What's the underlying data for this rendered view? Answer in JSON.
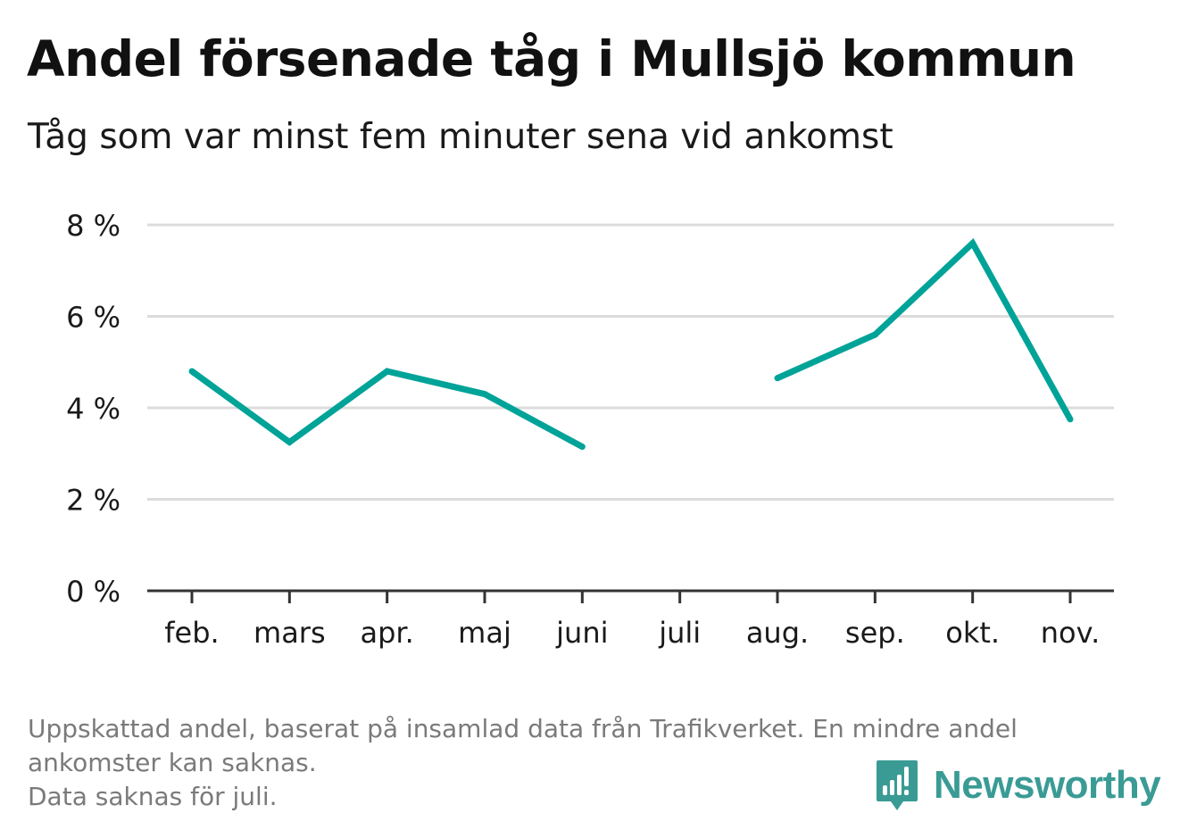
{
  "header": {
    "title": "Andel försenade tåg i Mullsjö kommun",
    "subtitle": "Tåg som var minst fem minuter sena vid ankomst"
  },
  "chart_data": {
    "type": "line",
    "title": "Andel försenade tåg i Mullsjö kommun",
    "subtitle": "Tåg som var minst fem minuter sena vid ankomst",
    "xlabel": "",
    "ylabel": "",
    "categories": [
      "feb.",
      "mars",
      "apr.",
      "maj",
      "juni",
      "juli",
      "aug.",
      "sep.",
      "okt.",
      "nov."
    ],
    "series": [
      {
        "values": [
          4.8,
          3.25,
          4.8,
          4.3,
          3.15,
          null,
          4.65,
          5.6,
          7.6,
          3.75
        ],
        "color": "#00a398"
      }
    ],
    "ylim": [
      0,
      8
    ],
    "yticks": [
      0,
      2,
      4,
      6,
      8
    ],
    "ytick_labels": [
      "0 %",
      "2 %",
      "4 %",
      "6 %",
      "8 %"
    ],
    "grid": "horizontal",
    "legend": "none"
  },
  "colors": {
    "line": "#00a398",
    "grid": "#dcdcdc",
    "axis": "#333333",
    "footnote": "#7a7a7a",
    "brand": "#3a9b95"
  },
  "footnote": {
    "line1": "Uppskattad andel, baserat på insamlad data från Trafikverket. En mindre andel",
    "line2": "ankomster kan saknas.",
    "line3": "Data saknas för juli."
  },
  "brand": {
    "name": "Newsworthy",
    "icon": "newsworthy-logo-icon"
  }
}
